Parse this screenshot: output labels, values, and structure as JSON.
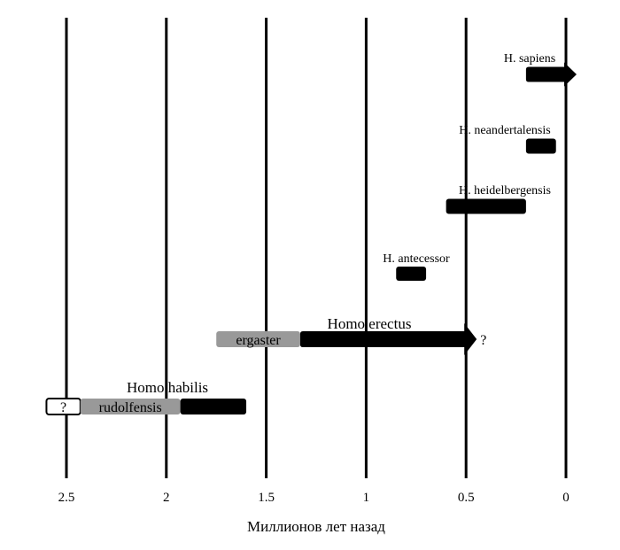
{
  "chart_data": {
    "type": "timeline",
    "xlabel": "Миллионов лет назад",
    "x_ticks": [
      "2.5",
      "2",
      "1.5",
      "1",
      "0.5",
      "0"
    ],
    "xlim": [
      2.5,
      0
    ],
    "grid": "vertical lines at each tick",
    "series": [
      {
        "name": "H. sapiens",
        "segments": [
          {
            "start": 0.2,
            "end": 0.0,
            "color": "#000000",
            "arrow": true
          }
        ]
      },
      {
        "name": "H. neandertalensis",
        "segments": [
          {
            "start": 0.2,
            "end": 0.05,
            "color": "#000000"
          }
        ]
      },
      {
        "name": "H. heidelbergensis",
        "segments": [
          {
            "start": 0.6,
            "end": 0.2,
            "color": "#000000"
          }
        ]
      },
      {
        "name": "H. antecessor",
        "segments": [
          {
            "start": 0.85,
            "end": 0.7,
            "color": "#000000"
          }
        ]
      },
      {
        "name": "Homo erectus",
        "segments": [
          {
            "label": "ergaster",
            "start": 1.75,
            "end": 1.33,
            "color": "#999999"
          },
          {
            "start": 1.33,
            "end": 0.5,
            "color": "#000000",
            "arrow": true,
            "note": "?"
          }
        ]
      },
      {
        "name": "Homo habilis",
        "segments": [
          {
            "label": "?",
            "start": 2.6,
            "end": 2.43,
            "color": "#ffffff",
            "outlined": true
          },
          {
            "label": "rudolfensis",
            "start": 2.43,
            "end": 1.93,
            "color": "#999999"
          },
          {
            "start": 1.93,
            "end": 1.6,
            "color": "#000000"
          }
        ]
      }
    ]
  }
}
